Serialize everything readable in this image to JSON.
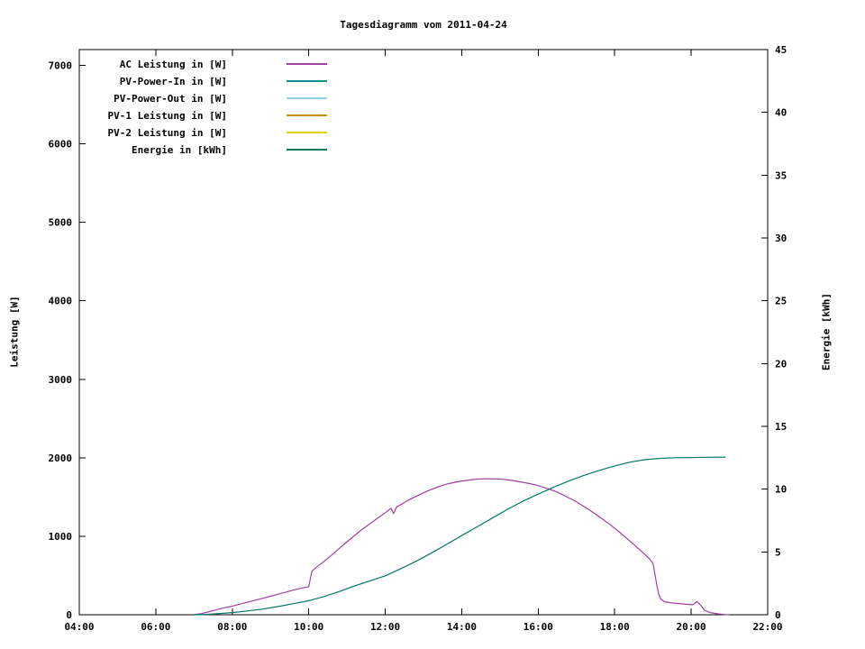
{
  "chart_data": {
    "type": "line",
    "title": "Tagesdiagramm vom 2011-04-24",
    "grid": false,
    "legend_position": "top-left-inside",
    "x_axis": {
      "label": "",
      "range": [
        4,
        22
      ],
      "unit": "time",
      "ticks": [
        {
          "v": 4,
          "label": "04:00"
        },
        {
          "v": 6,
          "label": "06:00"
        },
        {
          "v": 8,
          "label": "08:00"
        },
        {
          "v": 10,
          "label": "10:00"
        },
        {
          "v": 12,
          "label": "12:00"
        },
        {
          "v": 14,
          "label": "14:00"
        },
        {
          "v": 16,
          "label": "16:00"
        },
        {
          "v": 18,
          "label": "18:00"
        },
        {
          "v": 20,
          "label": "20:00"
        },
        {
          "v": 22,
          "label": "22:00"
        }
      ]
    },
    "y_left": {
      "label": "Leistung [W]",
      "range": [
        0,
        7200
      ],
      "ticks": [
        {
          "v": 0,
          "label": "0"
        },
        {
          "v": 1000,
          "label": "1000"
        },
        {
          "v": 2000,
          "label": "2000"
        },
        {
          "v": 3000,
          "label": "3000"
        },
        {
          "v": 4000,
          "label": "4000"
        },
        {
          "v": 5000,
          "label": "5000"
        },
        {
          "v": 6000,
          "label": "6000"
        },
        {
          "v": 7000,
          "label": "7000"
        }
      ]
    },
    "y_right": {
      "label": "Energie [kWh]",
      "range": [
        0,
        45
      ],
      "ticks": [
        {
          "v": 0,
          "label": "0"
        },
        {
          "v": 5,
          "label": "5"
        },
        {
          "v": 10,
          "label": "10"
        },
        {
          "v": 15,
          "label": "15"
        },
        {
          "v": 20,
          "label": "20"
        },
        {
          "v": 25,
          "label": "25"
        },
        {
          "v": 30,
          "label": "30"
        },
        {
          "v": 35,
          "label": "35"
        },
        {
          "v": 40,
          "label": "40"
        },
        {
          "v": 45,
          "label": "45"
        }
      ]
    },
    "series": [
      {
        "name": "AC Leistung in [W]",
        "color": "#a040a0",
        "axis": "left",
        "points": [
          [
            7.0,
            0
          ],
          [
            7.2,
            15
          ],
          [
            7.4,
            40
          ],
          [
            7.6,
            65
          ],
          [
            7.8,
            90
          ],
          [
            8.0,
            110
          ],
          [
            8.2,
            135
          ],
          [
            8.4,
            160
          ],
          [
            8.6,
            185
          ],
          [
            8.8,
            210
          ],
          [
            9.0,
            235
          ],
          [
            9.2,
            262
          ],
          [
            9.4,
            288
          ],
          [
            9.6,
            315
          ],
          [
            9.8,
            338
          ],
          [
            10.0,
            358
          ],
          [
            10.08,
            555
          ],
          [
            10.2,
            605
          ],
          [
            10.4,
            680
          ],
          [
            10.6,
            760
          ],
          [
            10.8,
            845
          ],
          [
            11.0,
            930
          ],
          [
            11.2,
            1010
          ],
          [
            11.4,
            1090
          ],
          [
            11.6,
            1160
          ],
          [
            11.8,
            1230
          ],
          [
            12.0,
            1300
          ],
          [
            12.15,
            1355
          ],
          [
            12.22,
            1290
          ],
          [
            12.3,
            1375
          ],
          [
            12.5,
            1430
          ],
          [
            12.7,
            1485
          ],
          [
            12.9,
            1530
          ],
          [
            13.1,
            1575
          ],
          [
            13.3,
            1615
          ],
          [
            13.5,
            1650
          ],
          [
            13.7,
            1675
          ],
          [
            13.9,
            1695
          ],
          [
            14.1,
            1710
          ],
          [
            14.3,
            1722
          ],
          [
            14.5,
            1730
          ],
          [
            14.7,
            1732
          ],
          [
            14.9,
            1730
          ],
          [
            15.1,
            1725
          ],
          [
            15.3,
            1712
          ],
          [
            15.5,
            1695
          ],
          [
            15.7,
            1678
          ],
          [
            15.9,
            1658
          ],
          [
            16.1,
            1630
          ],
          [
            16.3,
            1598
          ],
          [
            16.5,
            1560
          ],
          [
            16.7,
            1515
          ],
          [
            16.9,
            1465
          ],
          [
            17.1,
            1408
          ],
          [
            17.3,
            1348
          ],
          [
            17.5,
            1282
          ],
          [
            17.7,
            1212
          ],
          [
            17.9,
            1140
          ],
          [
            18.1,
            1062
          ],
          [
            18.3,
            980
          ],
          [
            18.5,
            895
          ],
          [
            18.7,
            808
          ],
          [
            18.9,
            718
          ],
          [
            19.0,
            655
          ],
          [
            19.05,
            520
          ],
          [
            19.1,
            380
          ],
          [
            19.15,
            265
          ],
          [
            19.2,
            200
          ],
          [
            19.3,
            165
          ],
          [
            19.5,
            150
          ],
          [
            19.7,
            142
          ],
          [
            19.9,
            132
          ],
          [
            20.05,
            128
          ],
          [
            20.15,
            168
          ],
          [
            20.25,
            120
          ],
          [
            20.35,
            55
          ],
          [
            20.5,
            28
          ],
          [
            20.7,
            12
          ],
          [
            20.85,
            4
          ],
          [
            21.0,
            0
          ]
        ]
      },
      {
        "name": "PV-Power-In in [W]",
        "color": "#0e8f8f",
        "axis": "left",
        "points": []
      },
      {
        "name": "PV-Power-Out in [W]",
        "color": "#8fd0e8",
        "axis": "left",
        "points": []
      },
      {
        "name": "PV-1 Leistung in [W]",
        "color": "#d08c00",
        "axis": "left",
        "points": []
      },
      {
        "name": "PV-2 Leistung in [W]",
        "color": "#e0d000",
        "axis": "left",
        "points": []
      },
      {
        "name": "Energie in [kWh]",
        "color": "#007868",
        "axis": "right",
        "points": [
          [
            7.0,
            0
          ],
          [
            7.3,
            0.03
          ],
          [
            7.6,
            0.08
          ],
          [
            8.0,
            0.17
          ],
          [
            8.4,
            0.3
          ],
          [
            8.8,
            0.45
          ],
          [
            9.2,
            0.65
          ],
          [
            9.6,
            0.88
          ],
          [
            10.0,
            1.12
          ],
          [
            10.4,
            1.45
          ],
          [
            10.8,
            1.85
          ],
          [
            11.2,
            2.3
          ],
          [
            11.6,
            2.7
          ],
          [
            12.0,
            3.1
          ],
          [
            12.4,
            3.65
          ],
          [
            12.8,
            4.25
          ],
          [
            13.2,
            4.9
          ],
          [
            13.6,
            5.6
          ],
          [
            14.0,
            6.3
          ],
          [
            14.4,
            7.0
          ],
          [
            14.8,
            7.7
          ],
          [
            15.2,
            8.4
          ],
          [
            15.6,
            9.05
          ],
          [
            16.0,
            9.6
          ],
          [
            16.4,
            10.15
          ],
          [
            16.8,
            10.65
          ],
          [
            17.2,
            11.1
          ],
          [
            17.6,
            11.5
          ],
          [
            18.0,
            11.85
          ],
          [
            18.4,
            12.15
          ],
          [
            18.8,
            12.35
          ],
          [
            19.2,
            12.45
          ],
          [
            19.6,
            12.5
          ],
          [
            20.0,
            12.52
          ],
          [
            20.4,
            12.54
          ],
          [
            20.9,
            12.55
          ]
        ]
      }
    ]
  }
}
